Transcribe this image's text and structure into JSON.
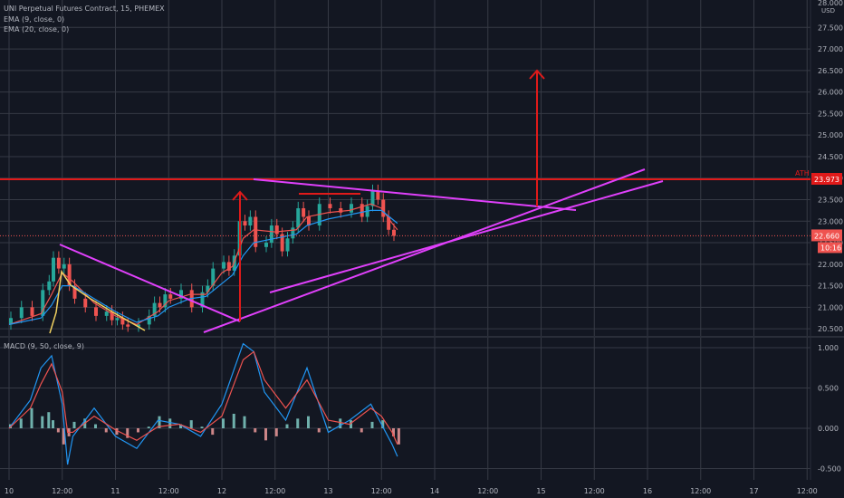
{
  "legend": {
    "symbol": "UNI Perpetual Futures Contract, 15, PHEMEX",
    "ema9": "EMA (9, close, 0)",
    "ema20": "EMA (20, close, 0)",
    "macd": "MACD (9, 50, close, 9)"
  },
  "colors": {
    "background": "#131722",
    "grid": "#363a45",
    "candle_up": "#26a69a",
    "candle_down": "#ef5350",
    "ema9": "#ef5350",
    "ema20": "#2196f3",
    "drawing_magenta": "#e040fb",
    "drawing_red": "#e01a1a",
    "drawing_yellow": "#f0d060"
  },
  "labels": {
    "ath": "ATH",
    "ath_price": "23.973",
    "current_price": "22.660",
    "countdown": "10:16",
    "currency": "USD",
    "top_tick": "28.000"
  },
  "chart_data": [
    {
      "type": "line",
      "title": "UNI Perpetual Futures Contract, 15, PHEMEX",
      "price_axis_ticks": [
        "27.500",
        "27.000",
        "26.500",
        "26.000",
        "25.500",
        "25.000",
        "24.500",
        "24.000",
        "23.500",
        "23.000",
        "22.500",
        "22.000",
        "21.500",
        "21.000",
        "20.500"
      ],
      "ylim": [
        20.45,
        28.1
      ],
      "time_axis_ticks": [
        "10",
        "12:00",
        "11",
        "12:00",
        "12",
        "12:00",
        "13",
        "12:00",
        "14",
        "12:00",
        "15",
        "12:00",
        "16",
        "12:00",
        "17",
        "12:00"
      ],
      "series": [
        {
          "name": "price",
          "x": [
            0,
            0.1,
            0.2,
            0.3,
            0.36,
            0.4,
            0.45,
            0.5,
            0.55,
            0.6,
            0.7,
            0.8,
            0.9,
            0.95,
            1.0,
            1.05,
            1.1,
            1.2,
            1.3,
            1.35,
            1.4,
            1.45,
            1.5,
            1.6,
            1.7,
            1.8,
            1.85,
            1.9,
            2.0,
            2.05,
            2.1,
            2.15,
            2.2,
            2.25,
            2.3,
            2.4,
            2.45,
            2.5,
            2.55,
            2.6,
            2.65,
            2.7,
            2.75,
            2.8,
            2.9,
            3.0,
            3.1,
            3.2,
            3.3,
            3.35,
            3.4,
            3.45,
            3.5,
            3.55,
            3.6,
            3.65
          ],
          "y": [
            20.6,
            20.75,
            21.0,
            20.8,
            21.4,
            21.6,
            22.15,
            21.9,
            22.0,
            21.5,
            21.2,
            21.0,
            20.8,
            20.9,
            20.7,
            20.75,
            20.6,
            20.55,
            20.6,
            20.8,
            21.1,
            21.0,
            21.3,
            21.2,
            21.4,
            21.0,
            21.35,
            21.5,
            21.9,
            22.05,
            21.85,
            22.2,
            23.0,
            22.9,
            23.1,
            22.4,
            22.5,
            22.9,
            22.7,
            22.3,
            22.6,
            22.85,
            23.3,
            23.1,
            22.9,
            23.4,
            23.3,
            23.2,
            23.4,
            23.1,
            23.35,
            23.7,
            23.5,
            23.1,
            22.8,
            22.66
          ]
        },
        {
          "name": "EMA (9, close, 0)",
          "x": [
            0,
            0.3,
            0.4,
            0.5,
            0.6,
            0.8,
            1.0,
            1.2,
            1.4,
            1.5,
            1.7,
            1.85,
            2.0,
            2.1,
            2.2,
            2.3,
            2.5,
            2.7,
            2.8,
            3.0,
            3.2,
            3.4,
            3.5,
            3.6,
            3.65
          ],
          "y": [
            20.6,
            20.85,
            21.3,
            21.8,
            21.6,
            21.1,
            20.8,
            20.6,
            20.9,
            21.15,
            21.3,
            21.3,
            21.8,
            21.95,
            22.6,
            22.8,
            22.75,
            22.8,
            23.1,
            23.2,
            23.25,
            23.4,
            23.3,
            22.95,
            22.8
          ]
        },
        {
          "name": "EMA (20, close, 0)",
          "x": [
            0,
            0.3,
            0.4,
            0.5,
            0.6,
            0.8,
            1.0,
            1.2,
            1.4,
            1.5,
            1.7,
            1.85,
            2.0,
            2.1,
            2.2,
            2.3,
            2.5,
            2.7,
            2.8,
            3.0,
            3.2,
            3.4,
            3.5,
            3.6,
            3.65
          ],
          "y": [
            20.6,
            20.75,
            21.05,
            21.5,
            21.5,
            21.2,
            20.9,
            20.65,
            20.8,
            21.0,
            21.2,
            21.25,
            21.55,
            21.75,
            22.2,
            22.5,
            22.6,
            22.7,
            22.9,
            23.05,
            23.15,
            23.25,
            23.25,
            23.05,
            22.95
          ]
        }
      ],
      "horizontal_lines": [
        {
          "label": "ATH",
          "y": 23.973
        },
        {
          "label": "",
          "y": 22.66
        }
      ],
      "grid": true
    },
    {
      "type": "bar",
      "title": "MACD (9, 50, close, 9)",
      "axis_ticks": [
        "1.000",
        "0.500",
        "0.000",
        "-0.500"
      ],
      "ylim": [
        -0.6,
        1.15
      ],
      "histogram_x": [
        0,
        0.1,
        0.2,
        0.3,
        0.36,
        0.4,
        0.45,
        0.5,
        0.55,
        0.6,
        0.7,
        0.8,
        0.9,
        1.0,
        1.1,
        1.2,
        1.3,
        1.4,
        1.5,
        1.6,
        1.7,
        1.8,
        1.9,
        2.0,
        2.1,
        2.2,
        2.3,
        2.4,
        2.5,
        2.6,
        2.7,
        2.8,
        2.9,
        3.0,
        3.1,
        3.2,
        3.3,
        3.4,
        3.5,
        3.6,
        3.65
      ],
      "histogram": [
        0.05,
        0.12,
        0.25,
        0.15,
        0.2,
        0.1,
        -0.05,
        -0.2,
        -0.1,
        0.08,
        0.12,
        0.05,
        -0.05,
        -0.08,
        -0.12,
        -0.05,
        0.02,
        0.15,
        0.12,
        0.05,
        0.1,
        0.02,
        -0.08,
        0.12,
        0.18,
        0.15,
        -0.05,
        -0.15,
        -0.1,
        0.05,
        0.12,
        0.15,
        -0.05,
        0.02,
        0.12,
        0.1,
        -0.05,
        0.08,
        0.1,
        -0.1,
        -0.2
      ],
      "series": [
        {
          "name": "MACD",
          "x": [
            0,
            0.2,
            0.3,
            0.4,
            0.5,
            0.55,
            0.6,
            0.8,
            1.0,
            1.2,
            1.4,
            1.6,
            1.8,
            2.0,
            2.2,
            2.3,
            2.4,
            2.6,
            2.8,
            3.0,
            3.2,
            3.4,
            3.5,
            3.6,
            3.65
          ],
          "y": [
            0.0,
            0.35,
            0.75,
            0.9,
            0.3,
            -0.45,
            -0.1,
            0.25,
            -0.1,
            -0.25,
            0.1,
            0.05,
            -0.1,
            0.3,
            1.05,
            0.95,
            0.45,
            0.1,
            0.75,
            -0.05,
            0.1,
            0.3,
            0.05,
            -0.2,
            -0.35
          ]
        },
        {
          "name": "Signal",
          "x": [
            0,
            0.2,
            0.3,
            0.4,
            0.5,
            0.55,
            0.6,
            0.8,
            1.0,
            1.2,
            1.4,
            1.6,
            1.8,
            2.0,
            2.2,
            2.3,
            2.4,
            2.6,
            2.8,
            3.0,
            3.2,
            3.4,
            3.5,
            3.6,
            3.65
          ],
          "y": [
            0.0,
            0.25,
            0.55,
            0.8,
            0.45,
            -0.05,
            -0.05,
            0.15,
            -0.02,
            -0.15,
            0.02,
            0.05,
            -0.05,
            0.15,
            0.85,
            0.95,
            0.6,
            0.25,
            0.6,
            0.1,
            0.05,
            0.25,
            0.15,
            -0.05,
            -0.2
          ]
        }
      ],
      "grid": true
    }
  ]
}
